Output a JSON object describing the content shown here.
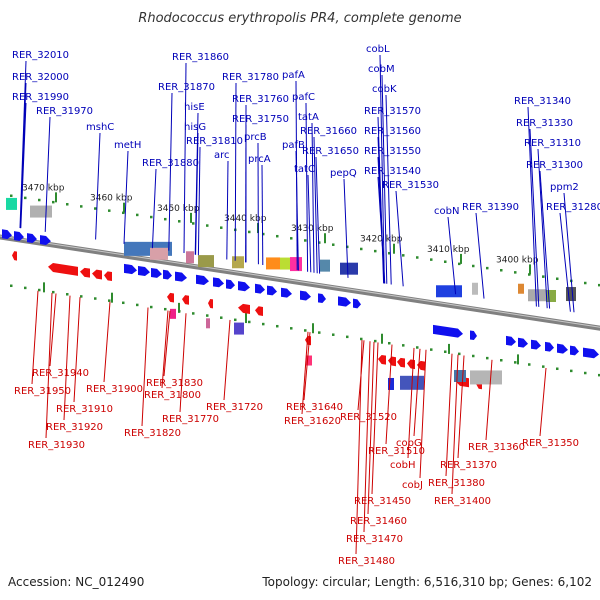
{
  "title": "Rhodococcus erythropolis PR4, complete genome",
  "accession": "Accession: NC_012490",
  "summary": "Topology: circular; Length: 6,516,310 bp; Genes: 6,102",
  "colors": {
    "forward": "#1010ee",
    "reverse": "#ee1010",
    "top_label": "#0000b8",
    "bottom_label": "#cc0000",
    "backbone": "#808080",
    "ruler_dot": "#2e8b2e"
  },
  "ruler_labels": [
    "3470 kbp",
    "3460 kbp",
    "3450 kbp",
    "3440 kbp",
    "3430 kbp",
    "3420 kbp",
    "3410 kbp",
    "3400 kbp"
  ],
  "top_labels": [
    "RER_32010",
    "RER_32000",
    "RER_31990",
    "RER_31970",
    "mshC",
    "metH",
    "RER_31880",
    "RER_31870",
    "hisE",
    "hisG",
    "RER_31860",
    "RER_31810",
    "arc",
    "RER_31780",
    "RER_31760",
    "RER_31750",
    "prcB",
    "prcA",
    "pafA",
    "pafC",
    "tatA",
    "pafB",
    "tatC",
    "RER_31660",
    "RER_31650",
    "pepQ",
    "cobL",
    "cobM",
    "cobK",
    "RER_31570",
    "RER_31560",
    "RER_31550",
    "RER_31540",
    "RER_31530",
    "cobN",
    "RER_31390",
    "RER_31340",
    "RER_31330",
    "RER_31310",
    "RER_31300",
    "ppm2",
    "RER_31280"
  ],
  "bottom_labels": [
    "RER_31940",
    "RER_31950",
    "RER_31900",
    "RER_31910",
    "RER_31920",
    "RER_31930",
    "RER_31830",
    "RER_31800",
    "RER_31820",
    "RER_31770",
    "RER_31720",
    "RER_31640",
    "RER_31620",
    "RER_31520",
    "RER_31510",
    "cobG",
    "cobH",
    "cobJ",
    "RER_31450",
    "RER_31460",
    "RER_31470",
    "RER_31480",
    "RER_31360",
    "RER_31350",
    "RER_31370",
    "RER_31380",
    "RER_31400"
  ]
}
